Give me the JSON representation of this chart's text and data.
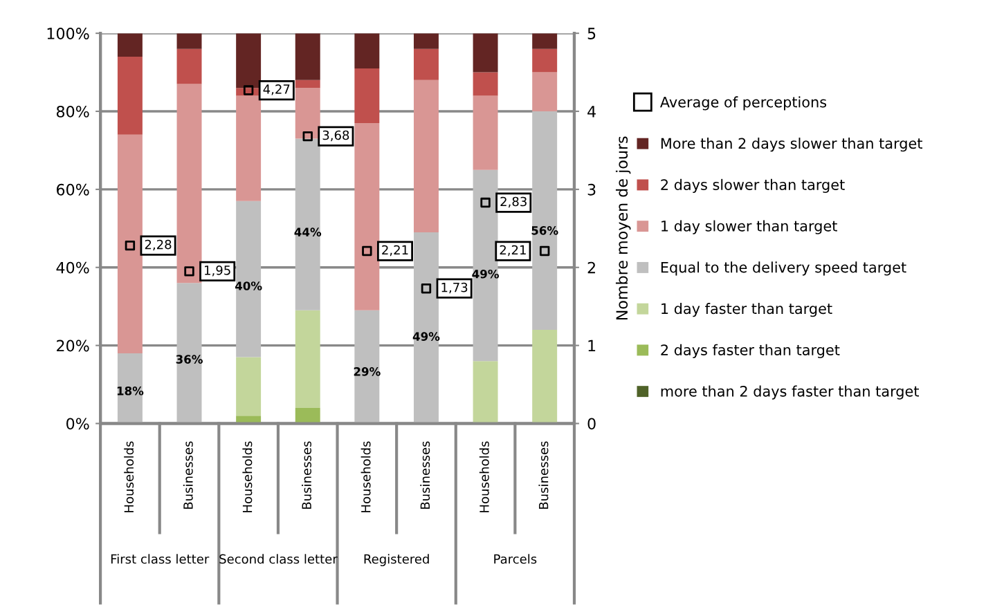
{
  "chart_data": {
    "type": "bar",
    "stacked": true,
    "categories": [
      "Households",
      "Businesses",
      "Households",
      "Businesses",
      "Households",
      "Businesses",
      "Households",
      "Businesses"
    ],
    "annotations": [
      "First class letter",
      "Second class letter",
      "Registered",
      "Parcels"
    ],
    "y2label": "Nombre moyen de jours",
    "ylim": [
      0,
      100
    ],
    "yticks": [
      {
        "value": 0,
        "label": "0%"
      },
      {
        "value": 20,
        "label": "20%"
      },
      {
        "value": 40,
        "label": "40%"
      },
      {
        "value": 60,
        "label": "60%"
      },
      {
        "value": 80,
        "label": "80%"
      },
      {
        "value": 100,
        "label": "100%"
      }
    ],
    "y2lim": [
      0,
      5
    ],
    "y2ticks": [
      0,
      1,
      2,
      3,
      4,
      5
    ],
    "grid": "y",
    "legend": "right",
    "series": [
      {
        "name": "more than 2 days faster than target",
        "color": "#4f6228",
        "values": [
          0,
          0,
          0,
          0,
          0,
          0,
          0,
          0
        ]
      },
      {
        "name": "2 days faster than target",
        "color": "#9bbb59",
        "values": [
          0,
          0,
          2,
          4,
          0,
          0,
          0,
          0
        ]
      },
      {
        "name": "1 day faster than target",
        "color": "#c3d69b",
        "values": [
          0,
          0,
          15,
          25,
          0,
          0,
          16,
          24
        ]
      },
      {
        "name": "Equal to the delivery speed target",
        "color": "#bfbfbf",
        "values": [
          18,
          36,
          40,
          44,
          29,
          49,
          49,
          56
        ],
        "value_labels": [
          "18%",
          "36%",
          "40%",
          "44%",
          "29%",
          "49%",
          "49%",
          "56%"
        ]
      },
      {
        "name": "1 day slower than target",
        "color": "#d99694",
        "values": [
          56,
          51,
          27,
          13,
          48,
          39,
          19,
          10
        ]
      },
      {
        "name": "2 days slower than target",
        "color": "#c0504d",
        "values": [
          20,
          9,
          2,
          2,
          14,
          8,
          6,
          6
        ]
      },
      {
        "name": "More than 2 days slower than target",
        "color": "#632523",
        "values": [
          6,
          4,
          14,
          12,
          9,
          4,
          10,
          4
        ]
      },
      {
        "name": "Average of perceptions",
        "type": "scatter",
        "axis": "y2",
        "marker": "square",
        "color": "#000000",
        "values": [
          2.28,
          1.95,
          4.27,
          3.68,
          2.21,
          1.73,
          2.83,
          2.21
        ],
        "value_labels": [
          "2,28",
          "1,95",
          "4,27",
          "3,68",
          "2,21",
          "1,73",
          "2,83",
          "2,21"
        ]
      }
    ]
  }
}
